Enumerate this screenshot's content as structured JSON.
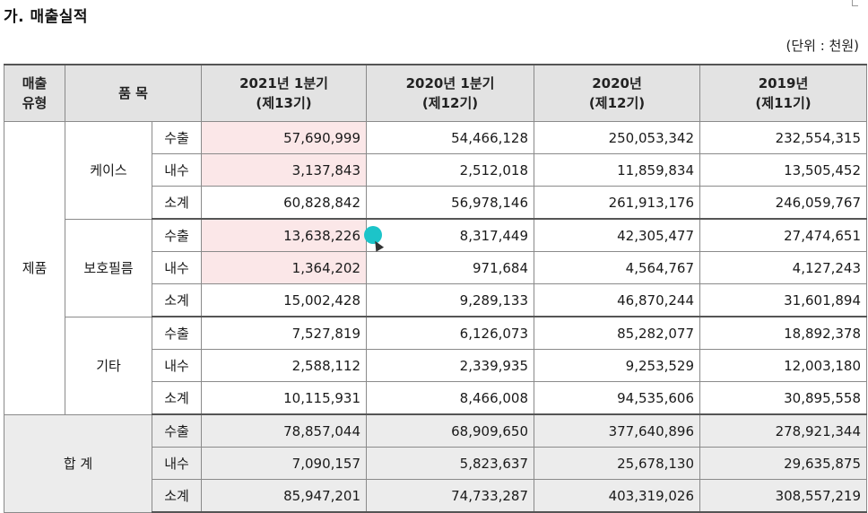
{
  "section_title": "가. 매출실적",
  "unit": "(단위 : 천원)",
  "headers": {
    "type_line1": "매출",
    "type_line2": "유형",
    "item": "품 목",
    "cols": [
      {
        "line1": "2021년 1분기",
        "line2": "(제13기)"
      },
      {
        "line1": "2020년 1분기",
        "line2": "(제12기)"
      },
      {
        "line1": "2020년",
        "line2": "(제12기)"
      },
      {
        "line1": "2019년",
        "line2": "(제11기)"
      }
    ]
  },
  "category": "제품",
  "groups": [
    {
      "name": "케이스",
      "rows": [
        {
          "kind": "수출",
          "values": [
            "57,690,999",
            "54,466,128",
            "250,053,342",
            "232,554,315"
          ]
        },
        {
          "kind": "내수",
          "values": [
            "3,137,843",
            "2,512,018",
            "11,859,834",
            "13,505,452"
          ]
        },
        {
          "kind": "소계",
          "values": [
            "60,828,842",
            "56,978,146",
            "261,913,176",
            "246,059,767"
          ]
        }
      ]
    },
    {
      "name": "보호필름",
      "rows": [
        {
          "kind": "수출",
          "values": [
            "13,638,226",
            "8,317,449",
            "42,305,477",
            "27,474,651"
          ]
        },
        {
          "kind": "내수",
          "values": [
            "1,364,202",
            "971,684",
            "4,564,767",
            "4,127,243"
          ]
        },
        {
          "kind": "소계",
          "values": [
            "15,002,428",
            "9,289,133",
            "46,870,244",
            "31,601,894"
          ]
        }
      ]
    },
    {
      "name": "기타",
      "rows": [
        {
          "kind": "수출",
          "values": [
            "7,527,819",
            "6,126,073",
            "85,282,077",
            "18,892,378"
          ]
        },
        {
          "kind": "내수",
          "values": [
            "2,588,112",
            "2,339,935",
            "9,253,529",
            "12,003,180"
          ]
        },
        {
          "kind": "소계",
          "values": [
            "10,115,931",
            "8,466,008",
            "94,535,606",
            "30,895,558"
          ]
        }
      ]
    }
  ],
  "total": {
    "name": "합 계",
    "rows": [
      {
        "kind": "수출",
        "values": [
          "78,857,044",
          "68,909,650",
          "377,640,896",
          "278,921,344"
        ]
      },
      {
        "kind": "내수",
        "values": [
          "7,090,157",
          "5,823,637",
          "25,678,130",
          "29,635,875"
        ]
      },
      {
        "kind": "소계",
        "values": [
          "85,947,201",
          "74,733,287",
          "403,319,026",
          "308,557,219"
        ]
      }
    ]
  },
  "highlight_color": "#fbe7e8",
  "cursor_color": "#1cc4c9"
}
